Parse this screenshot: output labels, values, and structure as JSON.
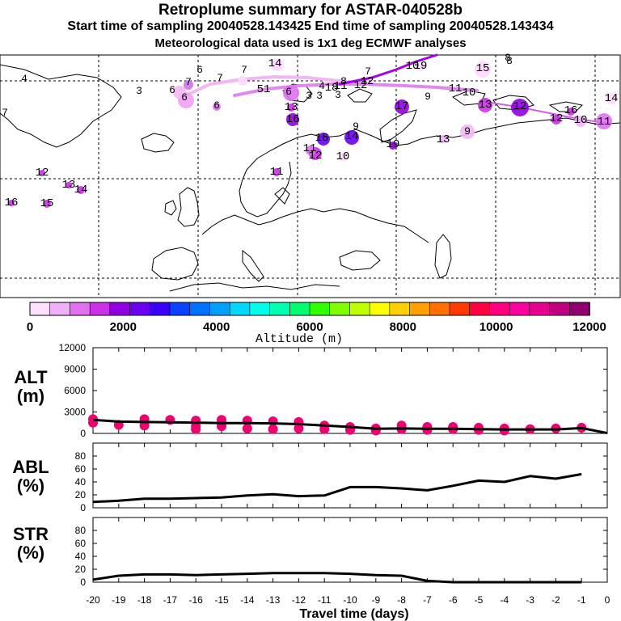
{
  "header": {
    "title": "Retroplume summary for ASTAR-040528b",
    "subtitle": "Start time of sampling 20040528.143425     End time of sampling 20040528.143434",
    "meteo": "Meteorological data used is 1x1 deg ECMWF analyses"
  },
  "colorbar": {
    "label": "Altitude (m)",
    "ticks": [
      "0",
      "2000",
      "4000",
      "6000",
      "8000",
      "10000",
      "12000"
    ],
    "colors": [
      "#ffe0ff",
      "#f0b0f8",
      "#e070f0",
      "#cc30e8",
      "#9000e0",
      "#6a00f0",
      "#3a00f8",
      "#0a40ff",
      "#0070ff",
      "#00a0ff",
      "#00d8ff",
      "#00ffe8",
      "#00ffb0",
      "#00ff70",
      "#30ff00",
      "#80ff00",
      "#c0ff00",
      "#ffff00",
      "#ffd000",
      "#ffa000",
      "#ff7000",
      "#ff3a00",
      "#ff0040",
      "#ff0080",
      "#ff00a0",
      "#e80090",
      "#c00080",
      "#900070"
    ]
  },
  "map": {
    "labels": [
      {
        "t": "4"
      },
      {
        "t": "7"
      },
      {
        "t": "3"
      },
      {
        "t": "6"
      },
      {
        "t": "7"
      },
      {
        "t": "6"
      },
      {
        "t": "7"
      },
      {
        "t": "6"
      },
      {
        "t": "7"
      },
      {
        "t": "14"
      },
      {
        "t": "6"
      },
      {
        "t": "51"
      },
      {
        "t": "6"
      },
      {
        "t": "3"
      },
      {
        "t": "3"
      },
      {
        "t": "4"
      },
      {
        "t": "18"
      },
      {
        "t": "11"
      },
      {
        "t": "3"
      },
      {
        "t": "8"
      },
      {
        "t": "12"
      },
      {
        "t": "12"
      },
      {
        "t": "7"
      },
      {
        "t": "10"
      },
      {
        "t": "8"
      },
      {
        "t": "13"
      },
      {
        "t": "16"
      },
      {
        "t": "17"
      },
      {
        "t": "9"
      },
      {
        "t": "11"
      },
      {
        "t": "10"
      },
      {
        "t": "15"
      },
      {
        "t": "8"
      },
      {
        "t": "13"
      },
      {
        "t": "12"
      },
      {
        "t": "16"
      },
      {
        "t": "10"
      },
      {
        "t": "11"
      },
      {
        "t": "14"
      },
      {
        "t": "9"
      },
      {
        "t": "16"
      },
      {
        "t": "14"
      },
      {
        "t": "9"
      },
      {
        "t": "13"
      },
      {
        "t": "19"
      },
      {
        "t": "12"
      },
      {
        "t": "10"
      },
      {
        "t": "11"
      },
      {
        "t": "12"
      },
      {
        "t": "13"
      },
      {
        "t": "14"
      },
      {
        "t": "16"
      },
      {
        "t": "15"
      },
      {
        "t": "11"
      },
      {
        "t": "12"
      },
      {
        "t": "19"
      }
    ]
  },
  "chart_data": [
    {
      "type": "line",
      "name": "ALT",
      "ylabel": "ALT (m)",
      "ylim": [
        0,
        12000
      ],
      "yticks": [
        "12000",
        "9000",
        "6000",
        "3000",
        "0"
      ],
      "x": [
        -20,
        -19,
        -18,
        -17,
        -16,
        -15,
        -14,
        -13,
        -12,
        -11,
        -10,
        -9,
        -8,
        -7,
        -6,
        -5,
        -4,
        -3,
        -2,
        -1,
        0
      ],
      "values": [
        1900,
        1650,
        1600,
        1550,
        1500,
        1450,
        1450,
        1400,
        1300,
        1100,
        900,
        650,
        700,
        650,
        650,
        600,
        550,
        550,
        550,
        750,
        50
      ],
      "scatter": [
        [
          -20,
          2000
        ],
        [
          -20,
          1500
        ],
        [
          -19,
          1200
        ],
        [
          -18,
          2000
        ],
        [
          -18,
          1100
        ],
        [
          -17,
          1900
        ],
        [
          -16,
          1800
        ],
        [
          -16,
          1000
        ],
        [
          -16,
          600
        ],
        [
          -15,
          1900
        ],
        [
          -15,
          1000
        ],
        [
          -14,
          1800
        ],
        [
          -14,
          700
        ],
        [
          -13,
          1700
        ],
        [
          -13,
          600
        ],
        [
          -12,
          1600
        ],
        [
          -12,
          700
        ],
        [
          -11,
          1100
        ],
        [
          -11,
          600
        ],
        [
          -10,
          900
        ],
        [
          -10,
          500
        ],
        [
          -9,
          700
        ],
        [
          -9,
          400
        ],
        [
          -8,
          1100
        ],
        [
          -8,
          600
        ],
        [
          -7,
          900
        ],
        [
          -7,
          500
        ],
        [
          -6,
          900
        ],
        [
          -6,
          600
        ],
        [
          -5,
          800
        ],
        [
          -5,
          500
        ],
        [
          -4,
          700
        ],
        [
          -4,
          400
        ],
        [
          -3,
          600
        ],
        [
          -2,
          700
        ],
        [
          -1,
          800
        ]
      ]
    },
    {
      "type": "line",
      "name": "ABL",
      "ylabel": "ABL (%)",
      "ylim": [
        0,
        100
      ],
      "yticks": [
        "80",
        "60",
        "40",
        "20",
        "0"
      ],
      "x": [
        -20,
        -19,
        -18,
        -17,
        -16,
        -15,
        -14,
        -13,
        -12,
        -11,
        -10,
        -9,
        -8,
        -7,
        -6,
        -5,
        -4,
        -3,
        -2,
        -1
      ],
      "values": [
        9,
        11,
        14,
        14,
        15,
        16,
        19,
        21,
        18,
        19,
        32,
        32,
        30,
        27,
        34,
        42,
        40,
        49,
        45,
        52
      ]
    },
    {
      "type": "line",
      "name": "STR",
      "ylabel": "STR (%)",
      "ylim": [
        0,
        100
      ],
      "yticks": [
        "80",
        "60",
        "40",
        "20",
        "0"
      ],
      "x": [
        -20,
        -19,
        -18,
        -17,
        -16,
        -15,
        -14,
        -13,
        -12,
        -11,
        -10,
        -9,
        -8,
        -7,
        -6,
        -5,
        -4,
        -3,
        -2,
        -1
      ],
      "values": [
        4,
        10,
        12,
        12,
        11,
        12,
        13,
        14,
        14,
        14,
        13,
        11,
        10,
        2,
        0,
        0,
        0,
        0,
        0,
        0
      ]
    }
  ],
  "xaxis": {
    "ticks": [
      "-20",
      "-19",
      "-18",
      "-17",
      "-16",
      "-15",
      "-14",
      "-13",
      "-12",
      "-11",
      "-10",
      "-9",
      "-8",
      "-7",
      "-6",
      "-5",
      "-4",
      "-3",
      "-2",
      "-1",
      "0"
    ],
    "label": "Travel time (days)"
  },
  "panels": {
    "alt": {
      "l1": "ALT",
      "l2": "(m)"
    },
    "abl": {
      "l1": "ABL",
      "l2": "(%)"
    },
    "str": {
      "l1": "STR",
      "l2": "(%)"
    }
  }
}
